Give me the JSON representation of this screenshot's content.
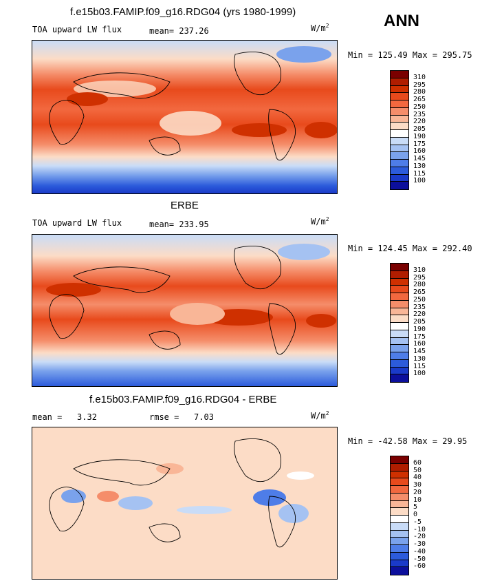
{
  "season": "ANN",
  "panels": [
    {
      "title": "f.e15b03.FAMIP.f09_g16.RDG04 (yrs 1980-1999)",
      "left_label": "TOA upward LW flux",
      "center_label": "mean=",
      "center_value": "237.26",
      "extra_label": "",
      "extra_value": "",
      "units": "W/m",
      "units_sup": "2",
      "minmax": "Min = 125.49 Max = 295.75",
      "colorbar": {
        "ticks": [
          "310",
          "295",
          "280",
          "265",
          "250",
          "235",
          "220",
          "205",
          "190",
          "175",
          "160",
          "145",
          "130",
          "115",
          "100"
        ],
        "colors": [
          "#7a0000",
          "#b01d00",
          "#cf3000",
          "#e84a1c",
          "#f2683f",
          "#f58d6a",
          "#f9b697",
          "#fcdcc6",
          "#ffffff",
          "#c9dcf7",
          "#a5c2f2",
          "#7aa2ec",
          "#4e7de8",
          "#2c5bdb",
          "#1a3ac9",
          "#0c0f9c"
        ]
      }
    },
    {
      "title": "ERBE",
      "left_label": "TOA upward LW flux",
      "center_label": "mean=",
      "center_value": "233.95",
      "extra_label": "",
      "extra_value": "",
      "units": "W/m",
      "units_sup": "2",
      "minmax": "Min = 124.45 Max = 292.40",
      "colorbar": {
        "ticks": [
          "310",
          "295",
          "280",
          "265",
          "250",
          "235",
          "220",
          "205",
          "190",
          "175",
          "160",
          "145",
          "130",
          "115",
          "100"
        ],
        "colors": [
          "#7a0000",
          "#b01d00",
          "#cf3000",
          "#e84a1c",
          "#f2683f",
          "#f58d6a",
          "#f9b697",
          "#fcdcc6",
          "#ffffff",
          "#c9dcf7",
          "#a5c2f2",
          "#7aa2ec",
          "#4e7de8",
          "#2c5bdb",
          "#1a3ac9",
          "#0c0f9c"
        ]
      }
    },
    {
      "title": "f.e15b03.FAMIP.f09_g16.RDG04 - ERBE",
      "left_label": "mean =",
      "center_label": "",
      "center_value": "3.32",
      "extra_label": "rmse =",
      "extra_value": "7.03",
      "units": "W/m",
      "units_sup": "2",
      "minmax": "Min = -42.58 Max =  29.95",
      "colorbar": {
        "ticks": [
          "60",
          "50",
          "40",
          "30",
          "20",
          "10",
          "5",
          "0",
          "-5",
          "-10",
          "-20",
          "-30",
          "-40",
          "-50",
          "-60"
        ],
        "colors": [
          "#7a0000",
          "#b01d00",
          "#cf3000",
          "#e84a1c",
          "#f2683f",
          "#f58d6a",
          "#f9b697",
          "#fcdcc6",
          "#ffffff",
          "#c9dcf7",
          "#a5c2f2",
          "#7aa2ec",
          "#4e7de8",
          "#2c5bdb",
          "#1a3ac9",
          "#0c0f9c"
        ]
      }
    }
  ],
  "chart_data": [
    {
      "type": "heatmap",
      "title": "f.e15b03.FAMIP.f09_g16.RDG04 (yrs 1980-1999)",
      "field": "TOA upward LW flux",
      "units": "W/m2",
      "mean": 237.26,
      "min": 125.49,
      "max": 295.75,
      "levels": [
        100,
        115,
        130,
        145,
        160,
        175,
        190,
        205,
        220,
        235,
        250,
        265,
        280,
        295,
        310
      ]
    },
    {
      "type": "heatmap",
      "title": "ERBE",
      "field": "TOA upward LW flux",
      "units": "W/m2",
      "mean": 233.95,
      "min": 124.45,
      "max": 292.4,
      "levels": [
        100,
        115,
        130,
        145,
        160,
        175,
        190,
        205,
        220,
        235,
        250,
        265,
        280,
        295,
        310
      ]
    },
    {
      "type": "heatmap",
      "title": "f.e15b03.FAMIP.f09_g16.RDG04 - ERBE",
      "units": "W/m2",
      "mean": 3.32,
      "rmse": 7.03,
      "min": -42.58,
      "max": 29.95,
      "levels": [
        -60,
        -50,
        -40,
        -30,
        -20,
        -10,
        -5,
        0,
        5,
        10,
        20,
        30,
        40,
        50,
        60
      ]
    }
  ]
}
